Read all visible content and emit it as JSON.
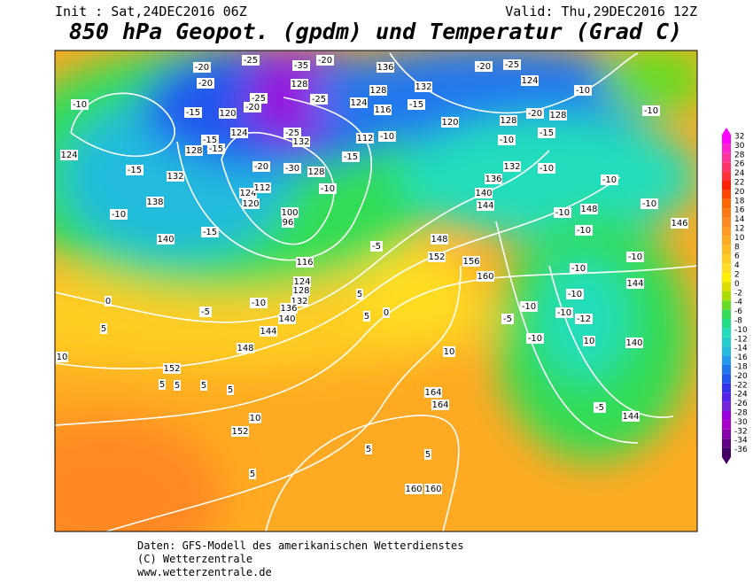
{
  "header": {
    "init": "Init : Sat,24DEC2016 06Z",
    "valid": "Valid: Thu,29DEC2016 12Z",
    "title": "850 hPa Geopot. (gpdm) und Temperatur (Grad C)"
  },
  "colorbar": {
    "labels": [
      32,
      30,
      28,
      26,
      24,
      22,
      20,
      18,
      16,
      14,
      12,
      10,
      8,
      6,
      4,
      2,
      0,
      -2,
      -4,
      -6,
      -8,
      -10,
      -12,
      -14,
      -16,
      -18,
      -20,
      -22,
      -24,
      -26,
      -28,
      -30,
      -32,
      -34,
      -36
    ],
    "colors": [
      "#ff00ff",
      "#ff22cc",
      "#ff3399",
      "#ff3366",
      "#ff3333",
      "#ff2200",
      "#ff4400",
      "#ff6600",
      "#ff7711",
      "#ff8822",
      "#ff9922",
      "#ffaa22",
      "#ffbb22",
      "#ffcc22",
      "#ffdd22",
      "#ffee00",
      "#dddd00",
      "#aadd00",
      "#66dd22",
      "#33dd55",
      "#22dd88",
      "#22ddbb",
      "#22cccc",
      "#22bbdd",
      "#2299ee",
      "#2277ee",
      "#2255ee",
      "#3333ee",
      "#5522ee",
      "#7722dd",
      "#9900dd",
      "#aa00cc",
      "#8800aa",
      "#660088",
      "#440066"
    ]
  },
  "contour_labels": [
    "-20",
    "-25",
    "-35",
    "-20",
    "136",
    "-20",
    "-25",
    "124",
    "-10",
    "-20",
    "-25",
    "128",
    "-25",
    "124",
    "128",
    "132",
    "-10",
    "-15",
    "120",
    "-20",
    "116",
    "-15",
    "120",
    "128",
    "-20",
    "128",
    "-10",
    "-15",
    "124",
    "-25",
    "132",
    "112",
    "-10",
    "-10",
    "-15",
    "124",
    "-15",
    "128",
    "-15",
    "-20",
    "-30",
    "128",
    "-15",
    "132",
    "-10",
    "132",
    "136",
    "-10",
    "124",
    "112",
    "-10",
    "140",
    "144",
    "-10",
    "148",
    "-10",
    "138",
    "-10",
    "120",
    "100",
    "96",
    "140",
    "-15",
    "-5",
    "148",
    "146",
    "-10",
    "152",
    "156",
    "-10",
    "116",
    "160",
    "124",
    "-10",
    "144",
    "0",
    "-5",
    "-10",
    "128",
    "132",
    "-10",
    "-10",
    "-10",
    "-12",
    "-5",
    "136",
    "140",
    "5",
    "0",
    "5",
    "144",
    "148",
    "5",
    "-10",
    "10",
    "140",
    "10",
    "152",
    "10",
    "5",
    "5",
    "5",
    "5",
    "164",
    "164",
    "-5",
    "144",
    "10",
    "152",
    "5",
    "5",
    "5",
    "160",
    "160"
  ],
  "footer": [
    "Daten: GFS-Modell des amerikanischen Wetterdienstes",
    "(C) Wetterzentrale",
    "www.wetterzentrale.de"
  ]
}
